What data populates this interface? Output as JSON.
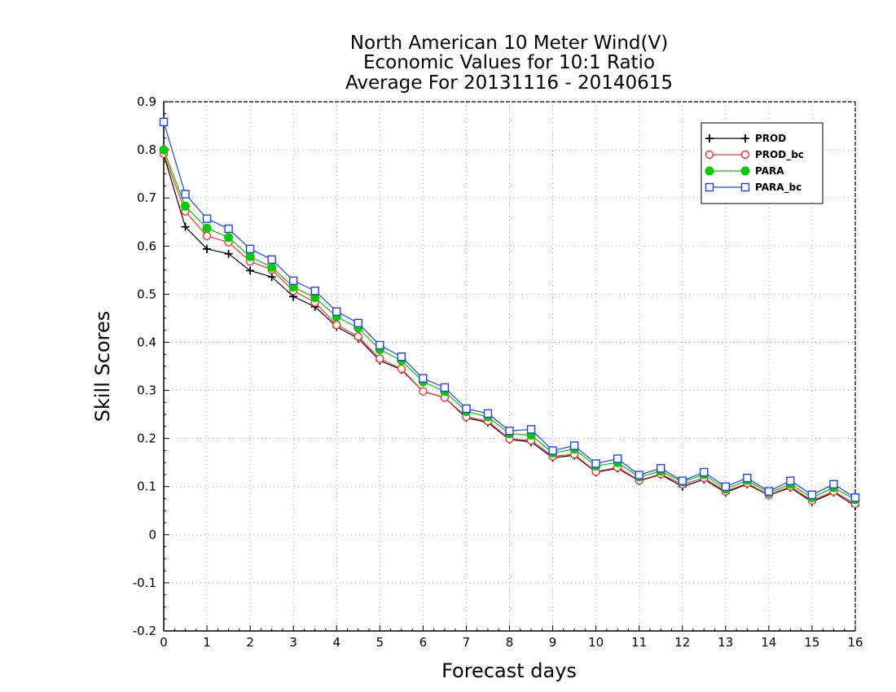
{
  "chart_data": {
    "type": "line",
    "title_lines": [
      "North American 10 Meter Wind(V)",
      "Economic Values for 10:1 Ratio",
      "Average For 20131116 - 20140615"
    ],
    "xlabel": "Forecast days",
    "ylabel": "Skill Scores",
    "xlim": [
      0,
      16
    ],
    "ylim": [
      -0.2,
      0.9
    ],
    "xticks": [
      "0",
      "1",
      "2",
      "3",
      "4",
      "5",
      "6",
      "7",
      "8",
      "9",
      "10",
      "11",
      "12",
      "13",
      "14",
      "15",
      "16"
    ],
    "yticks": [
      "-0.2",
      "-0.1",
      "0",
      "0.1",
      "0.2",
      "0.3",
      "0.4",
      "0.5",
      "0.6",
      "0.7",
      "0.8",
      "0.9"
    ],
    "grid": true,
    "legend_position": "top-right",
    "x": [
      0,
      0.5,
      1,
      1.5,
      2,
      2.5,
      3,
      3.5,
      4,
      4.5,
      5,
      5.5,
      6,
      6.5,
      7,
      7.5,
      8,
      8.5,
      9,
      9.5,
      10,
      10.5,
      11,
      11.5,
      12,
      12.5,
      13,
      13.5,
      14,
      14.5,
      15,
      15.5,
      16
    ],
    "series": [
      {
        "name": "PROD",
        "color": "#000000",
        "marker": "plus",
        "values": [
          0.79,
          0.64,
          0.594,
          0.584,
          0.549,
          0.536,
          0.495,
          0.474,
          0.432,
          0.408,
          0.362,
          0.343,
          0.298,
          0.285,
          0.243,
          0.233,
          0.198,
          0.193,
          0.16,
          0.165,
          0.13,
          0.138,
          0.112,
          0.125,
          0.1,
          0.115,
          0.088,
          0.105,
          0.082,
          0.098,
          0.068,
          0.088,
          0.06
        ]
      },
      {
        "name": "PROD_bc",
        "color": "#ff3030",
        "marker": "circle-open",
        "values": [
          0.792,
          0.672,
          0.621,
          0.608,
          0.568,
          0.551,
          0.507,
          0.483,
          0.436,
          0.412,
          0.366,
          0.345,
          0.298,
          0.285,
          0.245,
          0.236,
          0.199,
          0.196,
          0.163,
          0.167,
          0.131,
          0.14,
          0.113,
          0.126,
          0.105,
          0.118,
          0.09,
          0.107,
          0.083,
          0.1,
          0.071,
          0.09,
          0.064
        ]
      },
      {
        "name": "PARA",
        "color": "#00cc00",
        "marker": "circle-filled",
        "values": [
          0.8,
          0.683,
          0.637,
          0.618,
          0.578,
          0.556,
          0.515,
          0.493,
          0.453,
          0.43,
          0.385,
          0.362,
          0.318,
          0.298,
          0.256,
          0.245,
          0.21,
          0.207,
          0.17,
          0.178,
          0.143,
          0.15,
          0.12,
          0.132,
          0.11,
          0.125,
          0.095,
          0.113,
          0.087,
          0.105,
          0.077,
          0.098,
          0.073
        ]
      },
      {
        "name": "PARA_bc",
        "color": "#2040ff",
        "marker": "square-open",
        "values": [
          0.858,
          0.708,
          0.657,
          0.636,
          0.594,
          0.572,
          0.528,
          0.507,
          0.464,
          0.44,
          0.394,
          0.37,
          0.325,
          0.306,
          0.262,
          0.252,
          0.216,
          0.219,
          0.175,
          0.185,
          0.148,
          0.158,
          0.124,
          0.138,
          0.112,
          0.13,
          0.1,
          0.118,
          0.09,
          0.112,
          0.083,
          0.105,
          0.077
        ]
      }
    ]
  }
}
